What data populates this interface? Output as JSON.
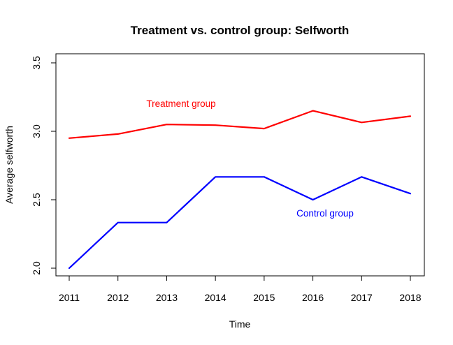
{
  "chart_data": {
    "type": "line",
    "title": "Treatment vs. control group: Selfworth",
    "xlabel": "Time",
    "ylabel": "Average selfworth",
    "x": [
      2011,
      2012,
      2013,
      2014,
      2015,
      2016,
      2017,
      2018
    ],
    "xlim": [
      2011,
      2018
    ],
    "ylim": [
      2.0,
      3.5
    ],
    "yticks": [
      "2.0",
      "2.5",
      "3.0",
      "3.5"
    ],
    "grid": false,
    "series": [
      {
        "name": "Treatment group",
        "color": "#ff0000",
        "values": [
          2.95,
          2.98,
          3.05,
          3.045,
          3.02,
          3.15,
          3.065,
          3.11
        ]
      },
      {
        "name": "Control group",
        "color": "#0000ff",
        "values": [
          2.0,
          2.333,
          2.333,
          2.667,
          2.667,
          2.5,
          2.667,
          2.545
        ]
      }
    ]
  }
}
